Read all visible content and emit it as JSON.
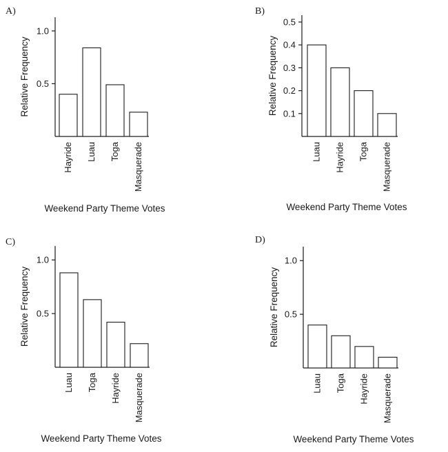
{
  "chart_data": [
    {
      "type": "bar",
      "option_label": "A)",
      "categories": [
        "Hayride",
        "Luau",
        "Toga",
        "Masquerade"
      ],
      "values": [
        0.4,
        0.84,
        0.49,
        0.23
      ],
      "ylabel": "Relative Frequency",
      "xlabel": "Weekend Party Theme Votes",
      "yticks": [
        "0.5",
        "1.0"
      ],
      "ytick_values": [
        0.5,
        1.0
      ],
      "ylim": [
        0,
        1.13
      ],
      "grid": false,
      "legend": "none"
    },
    {
      "type": "bar",
      "option_label": "B)",
      "categories": [
        "Luau",
        "Hayride",
        "Toga",
        "Masquerade"
      ],
      "values": [
        0.4,
        0.3,
        0.2,
        0.1
      ],
      "ylabel": "Relative Frequency",
      "xlabel": "Weekend Party Theme Votes",
      "yticks": [
        "0.1",
        "0.2",
        "0.3",
        "0.4",
        "0.5"
      ],
      "ytick_values": [
        0.1,
        0.2,
        0.3,
        0.4,
        0.5
      ],
      "ylim": [
        0,
        0.53
      ],
      "grid": false,
      "legend": "none"
    },
    {
      "type": "bar",
      "option_label": "C)",
      "categories": [
        "Luau",
        "Toga",
        "Hayride",
        "Masquerade"
      ],
      "values": [
        0.88,
        0.63,
        0.42,
        0.22
      ],
      "ylabel": "Relative Frequency",
      "xlabel": "Weekend Party Theme Votes",
      "yticks": [
        "0.5",
        "1.0"
      ],
      "ytick_values": [
        0.5,
        1.0
      ],
      "ylim": [
        0,
        1.13
      ],
      "grid": false,
      "legend": "none"
    },
    {
      "type": "bar",
      "option_label": "D)",
      "categories": [
        "Luau",
        "Toga",
        "Hayride",
        "Masquerade"
      ],
      "values": [
        0.4,
        0.3,
        0.2,
        0.1
      ],
      "ylabel": "Relative Frequency",
      "xlabel": "Weekend Party Theme Votes",
      "yticks": [
        "0.5",
        "1.0"
      ],
      "ytick_values": [
        0.5,
        1.0
      ],
      "ylim": [
        0,
        1.13
      ],
      "grid": false,
      "legend": "none"
    }
  ]
}
